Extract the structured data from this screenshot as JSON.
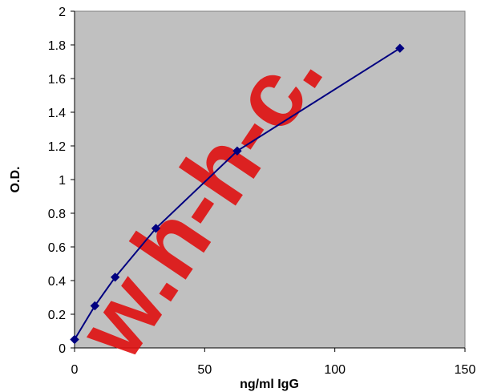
{
  "chart_data": {
    "type": "line",
    "title": "",
    "xlabel": "ng/ml IgG",
    "ylabel": "O.D.",
    "xlim": [
      0,
      150
    ],
    "ylim": [
      0,
      2
    ],
    "x_ticks": [
      0,
      50,
      100,
      150
    ],
    "y_ticks": [
      0,
      0.2,
      0.4,
      0.6,
      0.8,
      1,
      1.2,
      1.4,
      1.6,
      1.8,
      2
    ],
    "grid": false,
    "legend": "none",
    "plot_background": "#c0c0c0",
    "series": [
      {
        "x": [
          0,
          7.8,
          15.6,
          31.25,
          62.5,
          125
        ],
        "y": [
          0.05,
          0.25,
          0.42,
          0.71,
          1.17,
          1.78
        ],
        "color": "#000080",
        "marker": "diamond"
      }
    ]
  },
  "watermark": {
    "text": "w.h-h-c.",
    "color": "#e01010"
  }
}
